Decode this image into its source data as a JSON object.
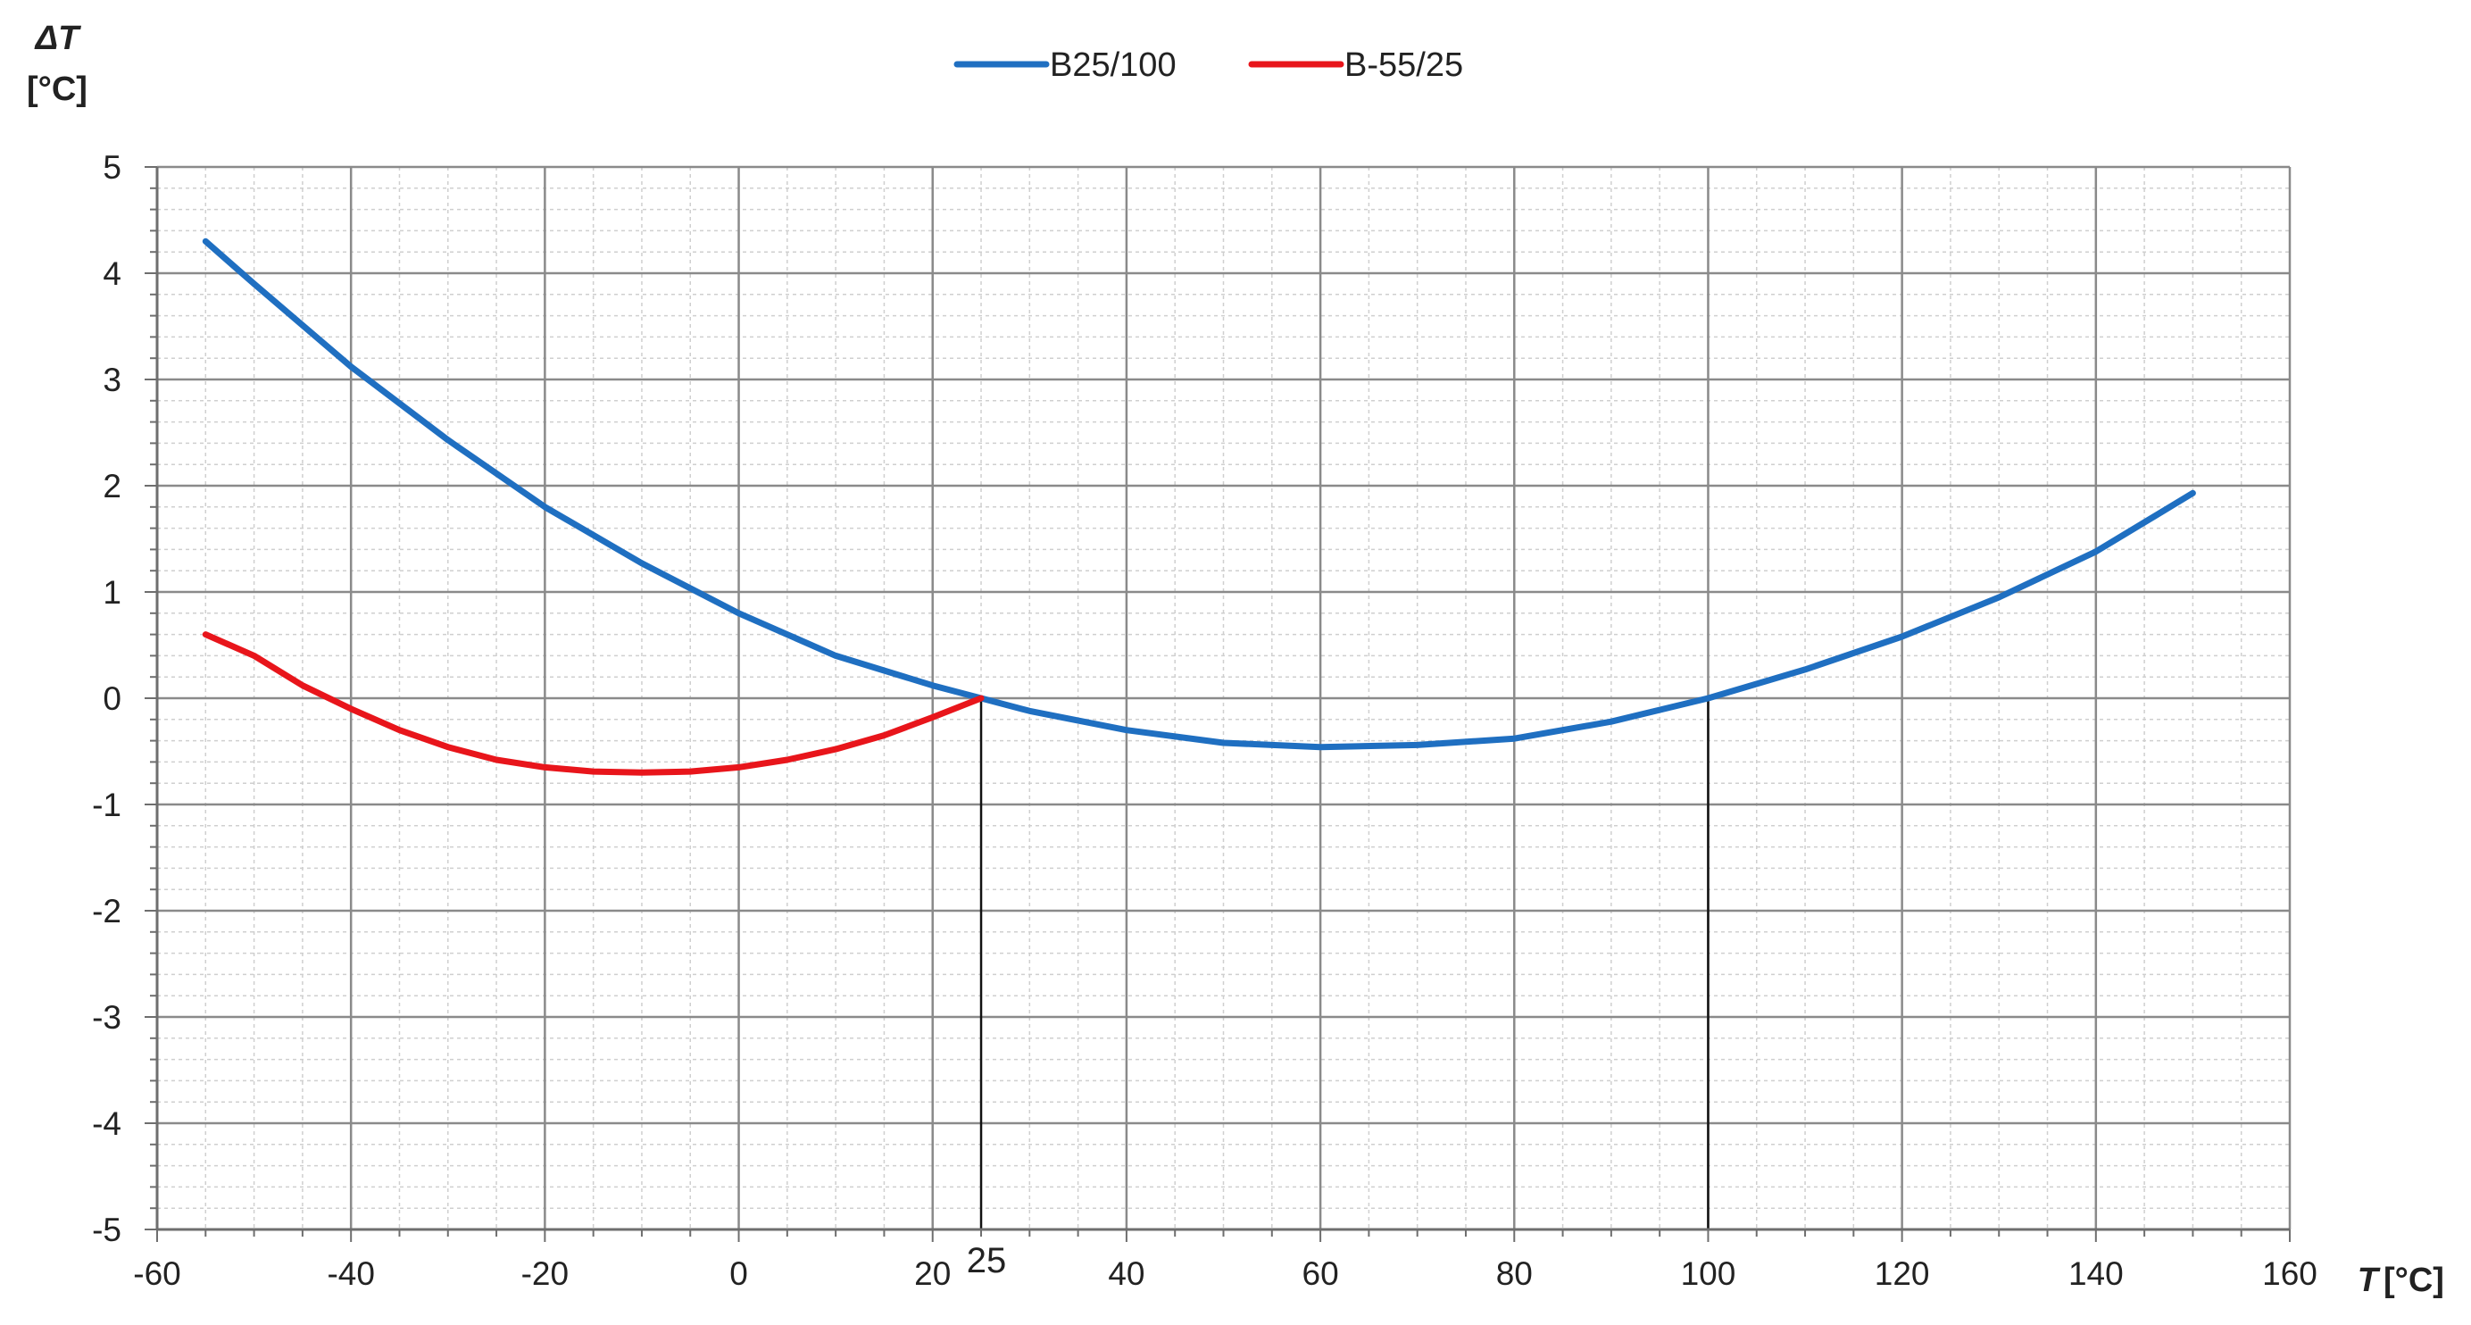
{
  "chart_data": {
    "type": "line",
    "xlabel_symbol": "T",
    "xlabel_unit": "[°C]",
    "ylabel_symbol": "ΔT",
    "ylabel_unit": "[°C]",
    "xlim": [
      -60,
      160
    ],
    "ylim": [
      -5,
      5
    ],
    "x_ticks": [
      -60,
      -40,
      -20,
      0,
      20,
      40,
      60,
      80,
      100,
      120,
      140,
      160
    ],
    "y_ticks": [
      5,
      4,
      3,
      2,
      1,
      0,
      -1,
      -2,
      -3,
      -4,
      -5
    ],
    "grid": true,
    "legend_position": "top-center",
    "marker_lines": [
      {
        "x": 25,
        "label": "25"
      },
      {
        "x": 100,
        "label": ""
      }
    ],
    "series": [
      {
        "name": "B25/100",
        "color": "#1f6fc1",
        "x": [
          -55,
          -50,
          -40,
          -30,
          -20,
          -10,
          0,
          10,
          20,
          25,
          30,
          40,
          50,
          60,
          70,
          80,
          90,
          100,
          110,
          120,
          130,
          140,
          150
        ],
        "y": [
          4.3,
          3.9,
          3.12,
          2.43,
          1.8,
          1.27,
          0.8,
          0.4,
          0.12,
          0.0,
          -0.12,
          -0.3,
          -0.42,
          -0.46,
          -0.44,
          -0.38,
          -0.22,
          0.0,
          0.27,
          0.58,
          0.95,
          1.38,
          1.93
        ]
      },
      {
        "name": "B-55/25",
        "color": "#e8151b",
        "x": [
          -55,
          -50,
          -45,
          -40,
          -35,
          -30,
          -25,
          -20,
          -15,
          -10,
          -5,
          0,
          5,
          10,
          15,
          20,
          25
        ],
        "y": [
          0.6,
          0.4,
          0.12,
          -0.1,
          -0.3,
          -0.46,
          -0.58,
          -0.65,
          -0.69,
          -0.7,
          -0.69,
          -0.65,
          -0.58,
          -0.48,
          -0.35,
          -0.18,
          0.0
        ]
      }
    ]
  }
}
